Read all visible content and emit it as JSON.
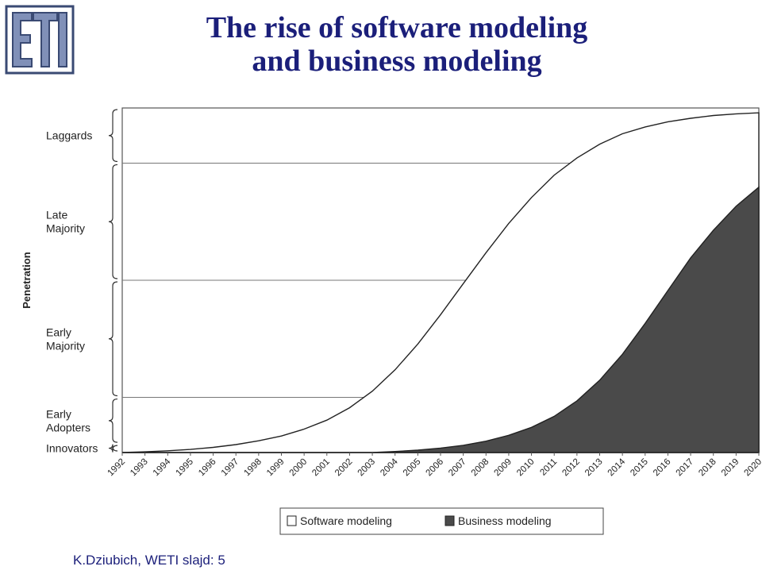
{
  "title": {
    "line1": "The rise of software modeling",
    "line2": "and business modeling"
  },
  "footer": "K.Dziubich, WETI slajd: 5",
  "logo": {
    "text": "ETI",
    "colors": {
      "frame": "#3a4a73",
      "fill": "#8090b8"
    }
  },
  "chart_data": {
    "type": "area",
    "title": "",
    "xlabel": "",
    "ylabel": "Penetration",
    "x": [
      1992,
      1993,
      1994,
      1995,
      1996,
      1997,
      1998,
      1999,
      2000,
      2001,
      2002,
      2003,
      2004,
      2005,
      2006,
      2007,
      2008,
      2009,
      2010,
      2011,
      2012,
      2013,
      2014,
      2015,
      2016,
      2017,
      2018,
      2019,
      2020
    ],
    "x_tick_labels": [
      "1992",
      "1993",
      "1994",
      "1995",
      "1996",
      "1997",
      "1998",
      "1999",
      "2000",
      "2001",
      "2002",
      "2003",
      "2004",
      "2005",
      "2006",
      "2007",
      "2008",
      "2009",
      "2010",
      "2011",
      "2012",
      "2013",
      "2014",
      "2015",
      "2016",
      "2017",
      "2018",
      "2019",
      "2020"
    ],
    "ylim": [
      0,
      100
    ],
    "y_categories": [
      {
        "label": "Innovators",
        "from": 0,
        "to": 2.5
      },
      {
        "label": "Early\nAdopters",
        "from": 2.5,
        "to": 16
      },
      {
        "label": "Early\nMajority",
        "from": 16,
        "to": 50
      },
      {
        "label": "Late\nMajority",
        "from": 50,
        "to": 84
      },
      {
        "label": "Laggards",
        "from": 84,
        "to": 100
      }
    ],
    "gridlines_y": [
      16,
      50,
      84
    ],
    "series": [
      {
        "name": "Software modeling",
        "fill": "#ffffff",
        "values": [
          0.0,
          0.2,
          0.5,
          0.9,
          1.5,
          2.3,
          3.4,
          4.8,
          6.8,
          9.4,
          13.0,
          17.8,
          24.0,
          31.5,
          40.0,
          49.0,
          58.0,
          66.5,
          74.0,
          80.5,
          85.5,
          89.5,
          92.5,
          94.5,
          96.0,
          97.0,
          97.8,
          98.3,
          98.6
        ]
      },
      {
        "name": "Business modeling",
        "fill": "#4a4a4a",
        "values": [
          0,
          0,
          0,
          0,
          0,
          0,
          0,
          0,
          0,
          0,
          0,
          0,
          0.3,
          0.7,
          1.3,
          2.1,
          3.3,
          5.0,
          7.3,
          10.5,
          15.0,
          21.0,
          28.5,
          37.5,
          47.0,
          56.5,
          64.5,
          71.5,
          77.0
        ]
      }
    ],
    "legend_position": "bottom",
    "grid": true
  }
}
